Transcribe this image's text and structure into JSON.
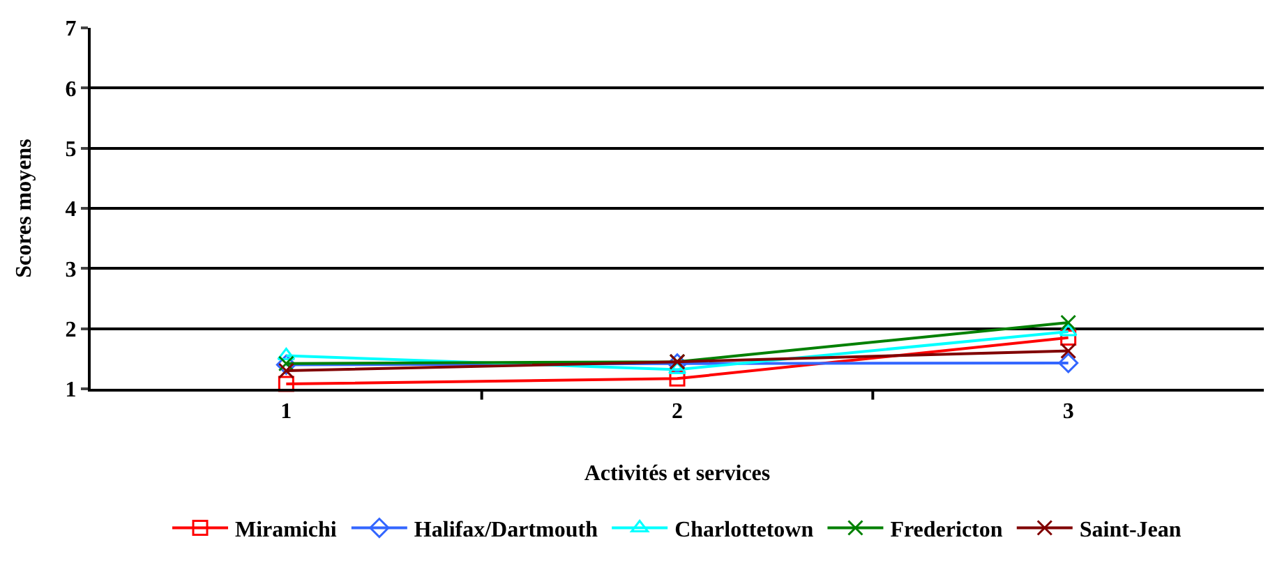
{
  "chart_data": {
    "type": "line",
    "xlabel": "Activités et services",
    "ylabel": "Scores moyens",
    "categories": [
      "1",
      "2",
      "3"
    ],
    "ylim": [
      1,
      7
    ],
    "yticks": [
      1,
      2,
      3,
      4,
      5,
      6,
      7
    ],
    "grid": "y",
    "legend": "bottom",
    "series": [
      {
        "name": "Miramichi",
        "color": "#ff0000",
        "marker": "square",
        "values": [
          1.08,
          1.17,
          1.85
        ]
      },
      {
        "name": "Halifax/Dartmouth",
        "color": "#3366ff",
        "marker": "diamond",
        "values": [
          1.4,
          1.42,
          1.43
        ]
      },
      {
        "name": "Charlottetown",
        "color": "#00ffff",
        "marker": "triangle",
        "values": [
          1.55,
          1.32,
          1.95
        ]
      },
      {
        "name": "Fredericton",
        "color": "#008000",
        "marker": "cross",
        "values": [
          1.42,
          1.45,
          2.1
        ]
      },
      {
        "name": "Saint-Jean",
        "color": "#800000",
        "marker": "cross",
        "values": [
          1.3,
          1.45,
          1.63
        ]
      }
    ]
  }
}
